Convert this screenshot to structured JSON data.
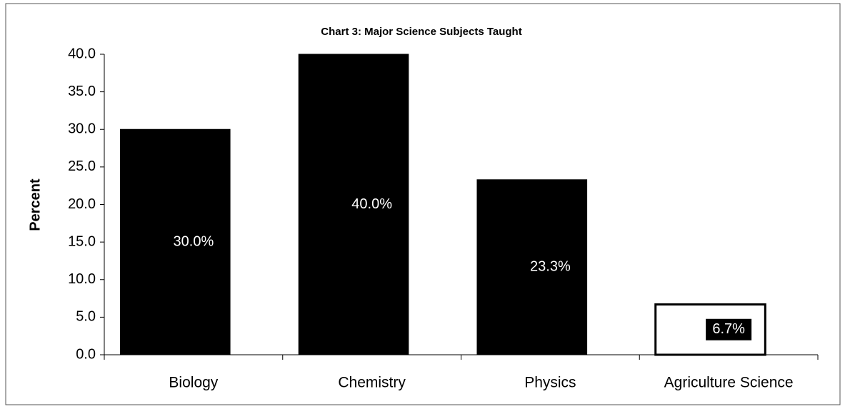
{
  "chart_data": {
    "type": "bar",
    "title": "Chart 3:  Major Science Subjects Taught",
    "y_label": "Percent",
    "categories": [
      "Biology",
      "Chemistry",
      "Physics",
      "Agriculture Science"
    ],
    "values": [
      30,
      40,
      23.3,
      6.7
    ],
    "value_labels": [
      "30.0%",
      "40.0%",
      "23.3%",
      "6.7%"
    ],
    "colors": [
      "#000000",
      "#000000",
      "#000000",
      "#ffffff"
    ],
    "ylim": [
      0,
      40
    ],
    "yticks": [
      {
        "value": 0,
        "label": "0.0"
      },
      {
        "value": 5,
        "label": "5.0"
      },
      {
        "value": 10,
        "label": "10.0"
      },
      {
        "value": 15,
        "label": "15.0"
      },
      {
        "value": 20,
        "label": "20.0"
      },
      {
        "value": 25,
        "label": "25.0"
      },
      {
        "value": 30,
        "label": "30.0"
      },
      {
        "value": 35,
        "label": "35.0"
      },
      {
        "value": 40,
        "label": "40.0"
      }
    ],
    "grid": false
  }
}
